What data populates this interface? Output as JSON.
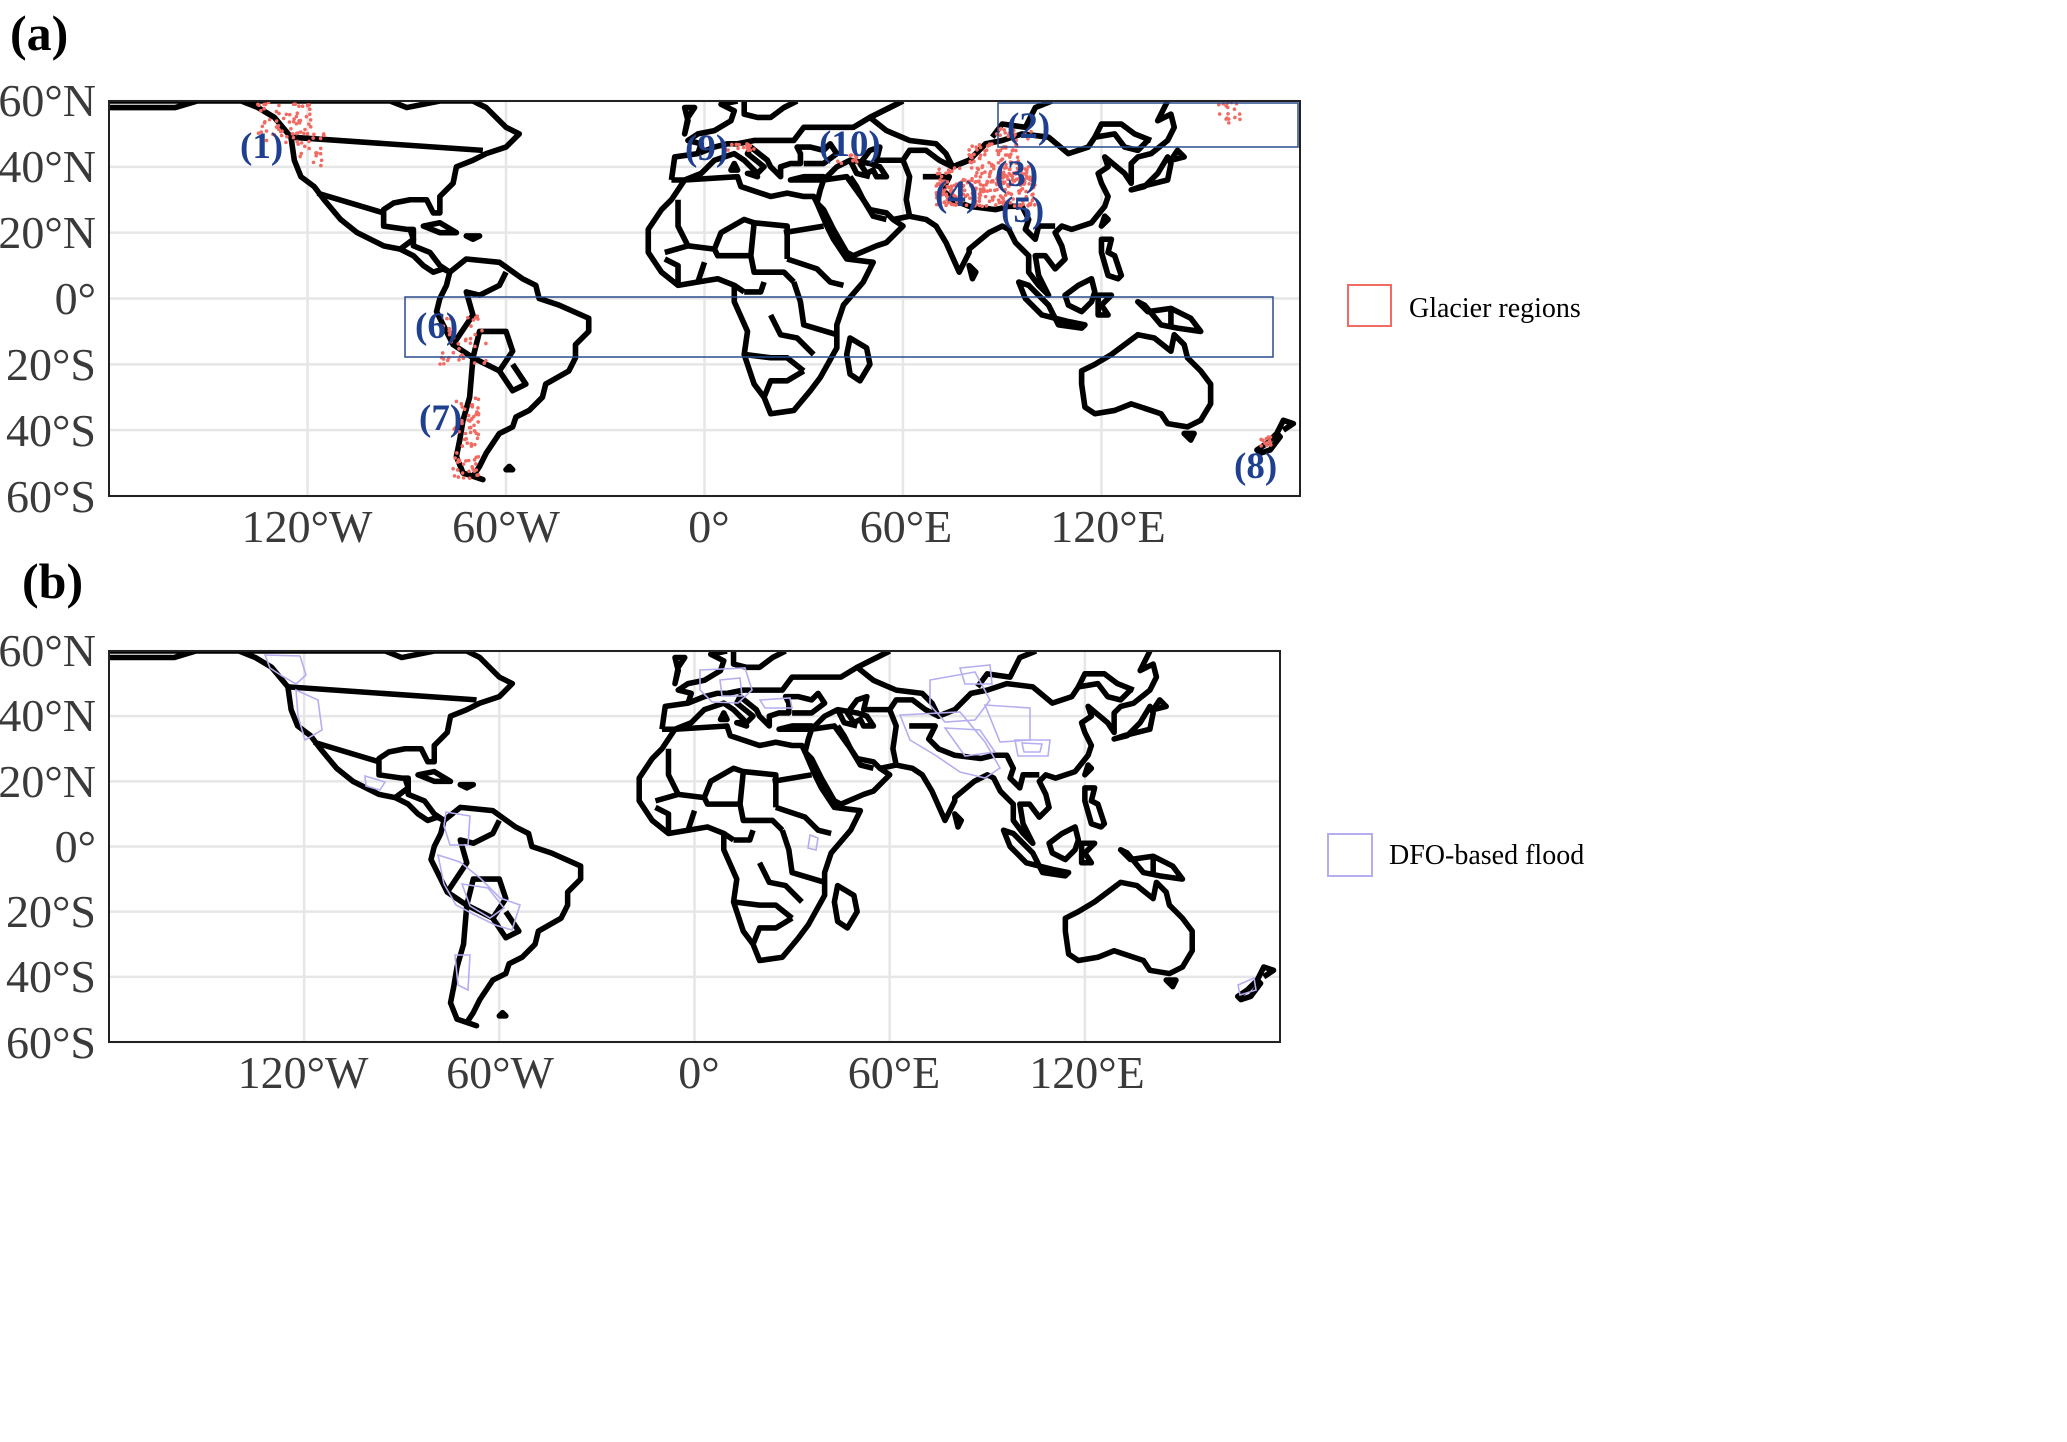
{
  "panel_a": {
    "letter": "(a)",
    "y_ticks": [
      "60°N",
      "40°N",
      "20°N",
      "0°",
      "20°S",
      "40°S",
      "60°S"
    ],
    "x_ticks": [
      "120°W",
      "60°W",
      "0°",
      "60°E",
      "120°E"
    ],
    "legend_label": "Glacier regions",
    "legend_color": "#f26b63",
    "region_labels": [
      "(1)",
      "(2)",
      "(3)",
      "(4)",
      "(5)",
      "(6)",
      "(7)",
      "(8)",
      "(9)",
      "(10)"
    ],
    "box_color": "#2a4b8d"
  },
  "panel_b": {
    "letter": "(b)",
    "y_ticks": [
      "60°N",
      "40°N",
      "20°N",
      "0°",
      "20°S",
      "40°S",
      "60°S"
    ],
    "x_ticks": [
      "120°W",
      "60°W",
      "0°",
      "60°E",
      "120°E"
    ],
    "legend_label": "DFO-based flood",
    "legend_color": "#b4aef0"
  },
  "chart_data": [
    {
      "type": "map",
      "projection": "equirectangular",
      "lon_range": [
        -180,
        180
      ],
      "lat_range": [
        -60,
        60
      ],
      "grid": true,
      "legend_placement": "right",
      "layer": "Glacier regions",
      "regions": [
        {
          "label": "(1)",
          "lon": -120,
          "lat": 48
        },
        {
          "label": "(2)",
          "lon": 98,
          "lat": 51
        },
        {
          "label": "(3)",
          "lon": 93,
          "lat": 36
        },
        {
          "label": "(4)",
          "lon": 75,
          "lat": 31
        },
        {
          "label": "(5)",
          "lon": 95,
          "lat": 26
        },
        {
          "label": "(6)",
          "lon": -76,
          "lat": -10
        },
        {
          "label": "(7)",
          "lon": -72,
          "lat": -38
        },
        {
          "label": "(8)",
          "lon": 165,
          "lat": -52
        },
        {
          "label": "(9)",
          "lon": 0,
          "lat": 44
        },
        {
          "label": "(10)",
          "lon": 43,
          "lat": 45
        }
      ],
      "boxes": [
        {
          "lon": [
            88,
            180
          ],
          "lat": [
            45,
            60
          ]
        },
        {
          "lon": [
            -91,
            172
          ],
          "lat": [
            -18,
            0
          ]
        }
      ]
    },
    {
      "type": "map",
      "projection": "equirectangular",
      "lon_range": [
        -180,
        180
      ],
      "lat_range": [
        -60,
        60
      ],
      "grid": true,
      "legend_placement": "right",
      "layer": "DFO-based flood"
    }
  ]
}
